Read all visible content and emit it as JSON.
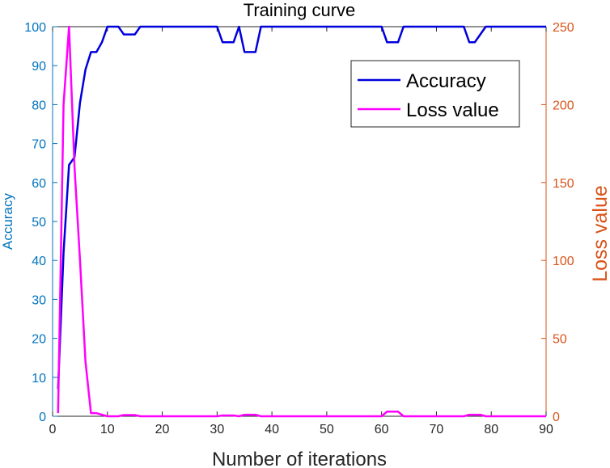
{
  "chart_data": {
    "type": "line",
    "title": "Training curve",
    "xlabel": "Number of iterations",
    "ylabel_left": "Accuracy",
    "ylabel_right": "Loss value",
    "xlim": [
      0,
      90
    ],
    "ylim_left": [
      0,
      100
    ],
    "ylim_right": [
      0,
      250
    ],
    "xticks": [
      "0",
      "10",
      "20",
      "30",
      "40",
      "50",
      "60",
      "70",
      "80",
      "90"
    ],
    "yticks_left": [
      "0",
      "10",
      "20",
      "30",
      "40",
      "50",
      "60",
      "70",
      "80",
      "90",
      "100"
    ],
    "yticks_right": [
      "0",
      "50",
      "100",
      "150",
      "200",
      "250"
    ],
    "legend_position": "top-right",
    "grid": false,
    "colors": {
      "accuracy": "#0000dd",
      "loss": "#ff00ff",
      "left_axis": "#0072bd",
      "right_axis": "#d95319",
      "frame": "#262626"
    },
    "series": [
      {
        "name": "Accuracy",
        "axis": "left",
        "x": [
          1,
          2,
          3,
          4,
          5,
          6,
          7,
          8,
          9,
          10,
          11,
          12,
          13,
          14,
          15,
          16,
          17,
          18,
          19,
          20,
          21,
          22,
          23,
          24,
          25,
          26,
          27,
          28,
          29,
          30,
          31,
          32,
          33,
          34,
          35,
          36,
          37,
          38,
          39,
          40,
          41,
          42,
          43,
          44,
          45,
          46,
          47,
          48,
          49,
          50,
          51,
          52,
          53,
          54,
          55,
          56,
          57,
          58,
          59,
          60,
          61,
          62,
          63,
          64,
          65,
          66,
          67,
          68,
          69,
          70,
          71,
          72,
          73,
          74,
          75,
          76,
          77,
          78,
          79,
          80,
          81,
          82,
          83,
          84,
          85,
          86,
          87,
          88,
          89,
          90
        ],
        "y": [
          7,
          42,
          64.5,
          66.5,
          80.5,
          89,
          93.5,
          93.5,
          96,
          100,
          100,
          100,
          98,
          98,
          98,
          100,
          100,
          100,
          100,
          100,
          100,
          100,
          100,
          100,
          100,
          100,
          100,
          100,
          100,
          100,
          96,
          96,
          96,
          100,
          93.5,
          93.5,
          93.5,
          100,
          100,
          100,
          100,
          100,
          100,
          100,
          100,
          100,
          100,
          100,
          100,
          100,
          100,
          100,
          100,
          100,
          100,
          100,
          100,
          100,
          100,
          100,
          96,
          96,
          96,
          100,
          100,
          100,
          100,
          100,
          100,
          100,
          100,
          100,
          100,
          100,
          100,
          96,
          96,
          98,
          100,
          100,
          100,
          100,
          100,
          100,
          100,
          100,
          100,
          100,
          100,
          100
        ]
      },
      {
        "name": "Loss value",
        "axis": "right",
        "x": [
          1,
          2,
          3,
          4,
          5,
          6,
          7,
          8,
          9,
          10,
          11,
          12,
          13,
          14,
          15,
          16,
          17,
          18,
          19,
          20,
          21,
          22,
          23,
          24,
          25,
          26,
          27,
          28,
          29,
          30,
          31,
          32,
          33,
          34,
          35,
          36,
          37,
          38,
          39,
          40,
          41,
          42,
          43,
          44,
          45,
          46,
          47,
          48,
          49,
          50,
          51,
          52,
          53,
          54,
          55,
          56,
          57,
          58,
          59,
          60,
          61,
          62,
          63,
          64,
          65,
          66,
          67,
          68,
          69,
          70,
          71,
          72,
          73,
          74,
          75,
          76,
          77,
          78,
          79,
          80,
          81,
          82,
          83,
          84,
          85,
          86,
          87,
          88,
          89,
          90
        ],
        "y": [
          2,
          200,
          250,
          160,
          100,
          35,
          2,
          2,
          1,
          0,
          0,
          0,
          0.8,
          0.8,
          0.8,
          0,
          0,
          0,
          0,
          0,
          0,
          0,
          0,
          0,
          0,
          0,
          0,
          0,
          0,
          0,
          0.5,
          0.5,
          0.5,
          0,
          1,
          1,
          1,
          0,
          0,
          0,
          0,
          0,
          0,
          0,
          0,
          0,
          0,
          0,
          0,
          0,
          0,
          0,
          0,
          0,
          0,
          0,
          0,
          0,
          0,
          0,
          3,
          3,
          3,
          0,
          0,
          0,
          0,
          0,
          0,
          0,
          0,
          0,
          0,
          0,
          0,
          1,
          1,
          1,
          0,
          0,
          0,
          0,
          0,
          0,
          0,
          0,
          0,
          0,
          0,
          0
        ]
      }
    ]
  }
}
